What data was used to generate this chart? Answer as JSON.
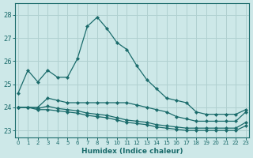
{
  "xlabel": "Humidex (Indice chaleur)",
  "background_color": "#cde8e8",
  "grid_color": "#b0d0d0",
  "line_color": "#1a6b6b",
  "hours": [
    0,
    1,
    2,
    3,
    4,
    5,
    6,
    7,
    8,
    9,
    10,
    11,
    12,
    13,
    14,
    15,
    16,
    17,
    18,
    19,
    20,
    21,
    22,
    23
  ],
  "series": {
    "line1": [
      24.6,
      25.6,
      25.1,
      25.6,
      25.3,
      25.3,
      26.1,
      27.5,
      27.9,
      27.4,
      26.8,
      26.5,
      25.8,
      25.2,
      24.8,
      24.4,
      24.3,
      24.2,
      23.8,
      23.7,
      23.7,
      23.7,
      23.7,
      23.9
    ],
    "line2": [
      24.0,
      24.0,
      24.0,
      24.4,
      24.3,
      24.2,
      24.2,
      24.2,
      24.2,
      24.2,
      24.2,
      24.2,
      24.1,
      24.0,
      23.9,
      23.8,
      23.6,
      23.5,
      23.4,
      23.4,
      23.4,
      23.4,
      23.4,
      23.8
    ],
    "line3": [
      24.0,
      24.0,
      23.95,
      24.05,
      23.95,
      23.9,
      23.85,
      23.75,
      23.7,
      23.65,
      23.55,
      23.45,
      23.4,
      23.35,
      23.25,
      23.2,
      23.15,
      23.1,
      23.1,
      23.1,
      23.1,
      23.1,
      23.1,
      23.35
    ],
    "line4": [
      24.0,
      24.0,
      23.9,
      23.9,
      23.85,
      23.8,
      23.75,
      23.65,
      23.6,
      23.55,
      23.45,
      23.35,
      23.3,
      23.25,
      23.15,
      23.1,
      23.05,
      23.0,
      23.0,
      23.0,
      23.0,
      23.0,
      23.0,
      23.2
    ]
  },
  "ylim": [
    22.7,
    28.5
  ],
  "yticks": [
    23,
    24,
    25,
    26,
    27,
    28
  ],
  "xlim": [
    -0.3,
    23.3
  ]
}
